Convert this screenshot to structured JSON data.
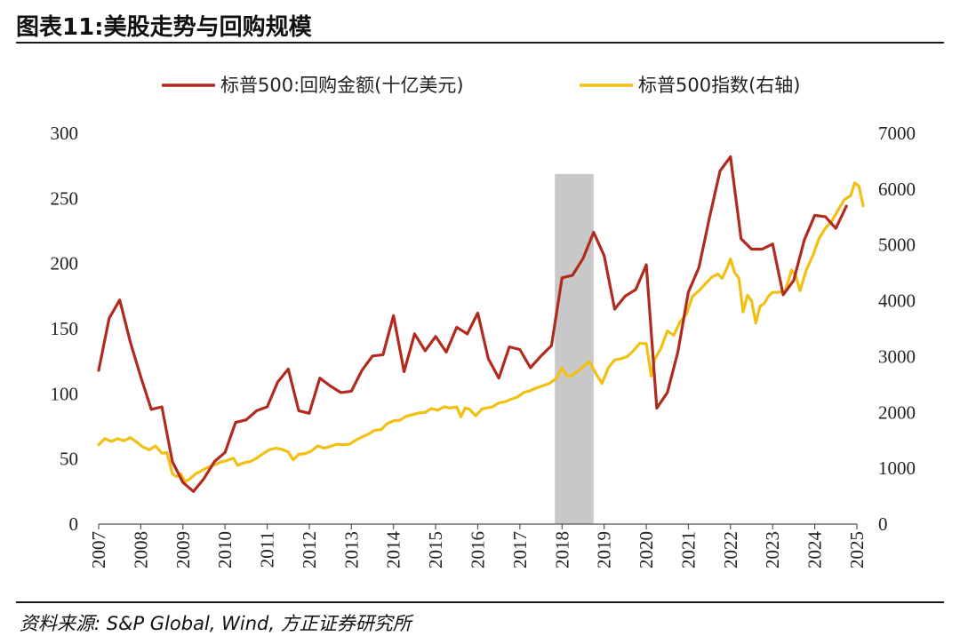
{
  "header": {
    "title": "图表11:美股走势与回购规模"
  },
  "footer": {
    "source": "资料来源: S&P Global, Wind, 方正证券研究所"
  },
  "chart_data": {
    "type": "line",
    "title": "图表11:美股走势与回购规模",
    "x_ticks": [
      "2007",
      "2008",
      "2009",
      "2010",
      "2011",
      "2012",
      "2013",
      "2014",
      "2015",
      "2016",
      "2017",
      "2018",
      "2019",
      "2020",
      "2021",
      "2022",
      "2023",
      "2024",
      "2025"
    ],
    "xlim": [
      2007,
      2025
    ],
    "y_left": {
      "ylim": [
        0,
        300
      ],
      "ticks": [
        0,
        50,
        100,
        150,
        200,
        250,
        300
      ]
    },
    "y_right": {
      "ylim": [
        0,
        7000
      ],
      "ticks": [
        0,
        1000,
        2000,
        3000,
        4000,
        5000,
        6000,
        7000
      ]
    },
    "shaded_region": {
      "x_start": 2017.83,
      "x_end": 2018.75,
      "color": "#c8c8c8"
    },
    "legend": {
      "placement": "top-center"
    },
    "series": [
      {
        "name": "标普500:回购金额(十亿美元)",
        "axis": "left",
        "color": "#b22a1e",
        "x": [
          2007.0,
          2007.25,
          2007.5,
          2007.75,
          2008.0,
          2008.25,
          2008.5,
          2008.75,
          2009.0,
          2009.25,
          2009.5,
          2009.75,
          2010.0,
          2010.25,
          2010.5,
          2010.75,
          2011.0,
          2011.25,
          2011.5,
          2011.75,
          2012.0,
          2012.25,
          2012.5,
          2012.75,
          2013.0,
          2013.25,
          2013.5,
          2013.75,
          2014.0,
          2014.25,
          2014.5,
          2014.75,
          2015.0,
          2015.25,
          2015.5,
          2015.75,
          2016.0,
          2016.25,
          2016.5,
          2016.75,
          2017.0,
          2017.25,
          2017.5,
          2017.75,
          2018.0,
          2018.25,
          2018.5,
          2018.75,
          2019.0,
          2019.25,
          2019.5,
          2019.75,
          2020.0,
          2020.25,
          2020.5,
          2020.75,
          2021.0,
          2021.25,
          2021.5,
          2021.75,
          2022.0,
          2022.25,
          2022.5,
          2022.75,
          2023.0,
          2023.25,
          2023.5,
          2023.75,
          2024.0,
          2024.25,
          2024.5,
          2024.75
        ],
        "values": [
          118,
          158,
          172,
          140,
          113,
          88,
          90,
          48,
          32,
          25,
          35,
          48,
          55,
          78,
          80,
          87,
          90,
          109,
          119,
          87,
          85,
          112,
          106,
          101,
          102,
          118,
          129,
          130,
          160,
          117,
          146,
          133,
          144,
          132,
          151,
          146,
          162,
          127,
          112,
          136,
          134,
          120,
          129,
          137,
          189,
          191,
          204,
          224,
          206,
          165,
          175,
          180,
          199,
          89,
          101,
          132,
          178,
          197,
          235,
          271,
          282,
          219,
          211,
          211,
          215,
          176,
          187,
          218,
          237,
          236,
          227,
          244
        ]
      },
      {
        "name": "标普500指数(右轴)",
        "axis": "right",
        "color": "#f2bf13",
        "x": [
          2007.0,
          2007.15,
          2007.3,
          2007.45,
          2007.6,
          2007.75,
          2007.9,
          2008.05,
          2008.2,
          2008.35,
          2008.5,
          2008.62,
          2008.75,
          2008.85,
          2008.95,
          2009.05,
          2009.15,
          2009.3,
          2009.45,
          2009.6,
          2009.75,
          2009.9,
          2010.05,
          2010.2,
          2010.3,
          2010.45,
          2010.6,
          2010.75,
          2010.9,
          2011.05,
          2011.2,
          2011.35,
          2011.5,
          2011.62,
          2011.75,
          2011.9,
          2012.05,
          2012.2,
          2012.35,
          2012.5,
          2012.65,
          2012.8,
          2012.95,
          2013.1,
          2013.25,
          2013.4,
          2013.55,
          2013.7,
          2013.85,
          2014.0,
          2014.15,
          2014.3,
          2014.45,
          2014.6,
          2014.75,
          2014.9,
          2015.05,
          2015.2,
          2015.35,
          2015.5,
          2015.6,
          2015.7,
          2015.8,
          2015.95,
          2016.1,
          2016.2,
          2016.35,
          2016.5,
          2016.65,
          2016.8,
          2016.95,
          2017.1,
          2017.25,
          2017.4,
          2017.55,
          2017.7,
          2017.85,
          2018.0,
          2018.1,
          2018.2,
          2018.35,
          2018.5,
          2018.65,
          2018.8,
          2018.95,
          2019.1,
          2019.25,
          2019.4,
          2019.55,
          2019.7,
          2019.85,
          2020.0,
          2020.12,
          2020.2,
          2020.35,
          2020.5,
          2020.65,
          2020.8,
          2020.95,
          2021.1,
          2021.25,
          2021.4,
          2021.55,
          2021.7,
          2021.8,
          2021.9,
          2022.0,
          2022.1,
          2022.2,
          2022.3,
          2022.4,
          2022.5,
          2022.6,
          2022.7,
          2022.8,
          2022.9,
          2023.0,
          2023.15,
          2023.3,
          2023.45,
          2023.55,
          2023.65,
          2023.8,
          2023.95,
          2024.1,
          2024.25,
          2024.4,
          2024.55,
          2024.7,
          2024.85,
          2024.95,
          2025.05,
          2025.15
        ],
        "values": [
          1420,
          1530,
          1480,
          1530,
          1490,
          1550,
          1470,
          1380,
          1330,
          1400,
          1270,
          1280,
          900,
          850,
          900,
          760,
          800,
          900,
          960,
          1020,
          1060,
          1110,
          1140,
          1180,
          1050,
          1100,
          1120,
          1180,
          1260,
          1330,
          1360,
          1340,
          1290,
          1150,
          1250,
          1260,
          1310,
          1400,
          1360,
          1390,
          1430,
          1420,
          1430,
          1500,
          1560,
          1610,
          1680,
          1690,
          1800,
          1850,
          1860,
          1930,
          1960,
          1990,
          2000,
          2070,
          2040,
          2100,
          2080,
          2100,
          1920,
          2080,
          2060,
          1940,
          2060,
          2080,
          2100,
          2170,
          2190,
          2240,
          2280,
          2360,
          2390,
          2440,
          2480,
          2520,
          2600,
          2800,
          2660,
          2650,
          2720,
          2820,
          2910,
          2700,
          2520,
          2800,
          2940,
          2960,
          3000,
          3110,
          3240,
          3230,
          2650,
          2950,
          3150,
          3460,
          3380,
          3620,
          3760,
          4080,
          4180,
          4300,
          4420,
          4480,
          4400,
          4560,
          4750,
          4500,
          4400,
          3800,
          4100,
          4000,
          3600,
          3900,
          3950,
          4080,
          4150,
          4150,
          4180,
          4550,
          4450,
          4180,
          4550,
          4800,
          5110,
          5300,
          5420,
          5620,
          5810,
          5880,
          6110,
          6050,
          5700
        ]
      }
    ]
  }
}
